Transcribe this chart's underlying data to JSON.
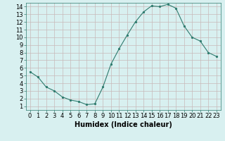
{
  "x": [
    0,
    1,
    2,
    3,
    4,
    5,
    6,
    7,
    8,
    9,
    10,
    11,
    12,
    13,
    14,
    15,
    16,
    17,
    18,
    19,
    20,
    21,
    22,
    23
  ],
  "y": [
    5.5,
    4.8,
    3.5,
    3.0,
    2.2,
    1.8,
    1.6,
    1.2,
    1.3,
    3.5,
    6.5,
    8.5,
    10.3,
    12.0,
    13.3,
    14.1,
    14.0,
    14.3,
    13.8,
    11.5,
    10.0,
    9.5,
    8.0,
    7.5
  ],
  "line_color": "#2e7b6e",
  "marker": ".",
  "bg_color": "#d8f0f0",
  "grid_color": "#c8b8b8",
  "xlabel": "Humidex (Indice chaleur)",
  "xlim": [
    -0.5,
    23.5
  ],
  "ylim": [
    0.5,
    14.5
  ],
  "yticks": [
    1,
    2,
    3,
    4,
    5,
    6,
    7,
    8,
    9,
    10,
    11,
    12,
    13,
    14
  ],
  "xticks": [
    0,
    1,
    2,
    3,
    4,
    5,
    6,
    7,
    8,
    9,
    10,
    11,
    12,
    13,
    14,
    15,
    16,
    17,
    18,
    19,
    20,
    21,
    22,
    23
  ],
  "xtick_labels": [
    "0",
    "1",
    "2",
    "3",
    "4",
    "5",
    "6",
    "7",
    "8",
    "9",
    "10",
    "11",
    "12",
    "13",
    "14",
    "15",
    "16",
    "17",
    "18",
    "19",
    "20",
    "21",
    "22",
    "23"
  ],
  "font_size": 6,
  "label_fontsize": 7
}
